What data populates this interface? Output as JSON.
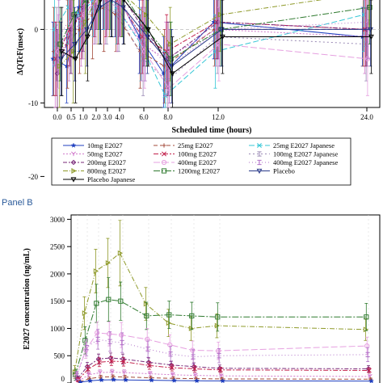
{
  "panel_b_label": "Panel B",
  "colors": {
    "10mg E2027": "#1f3fbf",
    "25mg E2027": "#a34a3a",
    "25mg E2027 Japanese": "#36c7d6",
    "50mg E2027": "#d27acc",
    "100mg E2027": "#c21f4a",
    "100mg E2027 Japanese": "#9a8ab5",
    "200mg E2027": "#7a2a7a",
    "400mg E2027": "#e6a0e0",
    "400mg E2027 Japanese": "#b070c8",
    "800mg E2027": "#8f9a2a",
    "1200mg E2027": "#2f7a2f",
    "Placebo": "#2a3a8a",
    "Placebo Japanese": "#000000"
  },
  "chart_data": [
    {
      "type": "line",
      "panel": "A",
      "ylabel": "ΔQTcF(msec)",
      "xlabel": "Scheduled time (hours)",
      "x_ticks": [
        "0.0",
        "0.5",
        "1.0",
        "2.0",
        "3.0",
        "4.0",
        "6.0",
        "8.0",
        "12.0",
        "24.0"
      ],
      "y_ticks": [
        -20,
        -10,
        0
      ],
      "ylim": [
        -21,
        7
      ],
      "legend": {
        "placement": "bottom",
        "rows": [
          [
            "10mg E2027",
            "25mg E2027",
            "25mg E2027 Japanese"
          ],
          [
            "50mg E2027",
            "100mg E2027",
            "100mg E2027 Japanese"
          ],
          [
            "200mg E2027",
            "400mg E2027",
            "400mg E2027 Japanese"
          ],
          [
            "800mg E2027",
            "1200mg E2027",
            "Placebo"
          ],
          [
            "Placebo Japanese"
          ]
        ]
      },
      "series": [
        {
          "name": "10mg E2027",
          "marker": "star",
          "dash": "",
          "values": [
            -4,
            -5,
            3,
            6,
            6,
            5,
            -1,
            -6,
            1,
            -1
          ],
          "err": [
            5,
            5,
            6,
            6,
            6,
            6,
            5,
            5,
            5,
            4
          ]
        },
        {
          "name": "25mg E2027",
          "marker": "plus",
          "dash": "5,3",
          "values": [
            -3,
            -2,
            0,
            2,
            3,
            2,
            -3,
            -5,
            0,
            0
          ],
          "err": [
            6,
            6,
            6,
            6,
            6,
            5,
            5,
            5,
            5,
            5
          ]
        },
        {
          "name": "25mg E2027 Japanese",
          "marker": "x",
          "dash": "7,3",
          "values": [
            0,
            3,
            2,
            4,
            5,
            3,
            -2,
            -9,
            -3,
            2
          ],
          "err": [
            5,
            5,
            5,
            5,
            5,
            5,
            5,
            6,
            5,
            5
          ]
        },
        {
          "name": "50mg E2027",
          "marker": "y",
          "dash": "2,2",
          "values": [
            -5,
            -1,
            1,
            4,
            4,
            3,
            -2,
            -4,
            0,
            -1
          ],
          "err": [
            6,
            6,
            6,
            6,
            6,
            6,
            5,
            5,
            5,
            5
          ]
        },
        {
          "name": "100mg E2027",
          "marker": "x",
          "dash": "6,2,2,2",
          "values": [
            -4,
            0,
            2,
            5,
            5,
            4,
            -1,
            -3,
            1,
            0
          ],
          "err": [
            5,
            5,
            6,
            6,
            6,
            6,
            5,
            5,
            5,
            5
          ]
        },
        {
          "name": "100mg E2027 Japanese",
          "marker": "bar",
          "dash": "2,3",
          "values": [
            -2,
            -1,
            1,
            3,
            3,
            2,
            -4,
            -7,
            -1,
            -2
          ],
          "err": [
            5,
            5,
            5,
            5,
            5,
            5,
            5,
            5,
            5,
            5
          ]
        },
        {
          "name": "200mg E2027",
          "marker": "diamond",
          "dash": "5,2,2,2",
          "values": [
            -6,
            0,
            3,
            6,
            6,
            5,
            0,
            -4,
            1,
            0
          ],
          "err": [
            6,
            6,
            6,
            6,
            6,
            6,
            5,
            5,
            5,
            5
          ]
        },
        {
          "name": "400mg E2027",
          "marker": "circle",
          "dash": "8,3",
          "values": [
            -3,
            1,
            2,
            4,
            5,
            4,
            -3,
            -8,
            -2,
            -4
          ],
          "err": [
            5,
            5,
            6,
            6,
            6,
            5,
            5,
            5,
            5,
            5
          ]
        },
        {
          "name": "400mg E2027 Japanese",
          "marker": "bar",
          "dash": "1,3",
          "values": [
            -1,
            2,
            3,
            5,
            5,
            4,
            -2,
            -5,
            0,
            1
          ],
          "err": [
            5,
            5,
            5,
            5,
            5,
            5,
            5,
            5,
            5,
            5
          ]
        },
        {
          "name": "800mg E2027",
          "marker": "tri-right",
          "dash": "6,2,1,2",
          "values": [
            -5,
            -3,
            1,
            5,
            6,
            5,
            2,
            -2,
            2,
            5
          ],
          "err": [
            6,
            7,
            7,
            7,
            7,
            6,
            6,
            5,
            5,
            5
          ]
        },
        {
          "name": "1200mg E2027",
          "marker": "square",
          "dash": "8,2,2,2",
          "values": [
            -2,
            2,
            4,
            6,
            6,
            5,
            0,
            -4,
            0,
            3
          ],
          "err": [
            5,
            6,
            6,
            6,
            6,
            6,
            5,
            5,
            5,
            5
          ]
        },
        {
          "name": "Placebo",
          "marker": "tri-down",
          "dash": "",
          "values": [
            -4,
            -2,
            0,
            3,
            4,
            3,
            -1,
            -5,
            0,
            0
          ],
          "err": [
            5,
            5,
            5,
            5,
            5,
            5,
            5,
            5,
            5,
            5
          ]
        },
        {
          "name": "Placebo Japanese",
          "marker": "tri-down",
          "dash": "",
          "values": [
            -3,
            -4,
            -1,
            4,
            5,
            4,
            0,
            -6,
            -1,
            -1
          ],
          "err": [
            6,
            6,
            6,
            6,
            6,
            6,
            5,
            5,
            5,
            5
          ]
        }
      ]
    },
    {
      "type": "line",
      "panel": "B",
      "ylabel": "E2027 concentration (ng/mL)",
      "y_ticks": [
        0,
        500,
        1000,
        1500,
        2000,
        2500,
        3000
      ],
      "ylim": [
        0,
        3080
      ],
      "x_positions": [
        0,
        0.5,
        1,
        2,
        3,
        4,
        6,
        8,
        12,
        24
      ],
      "series": [
        {
          "name": "800mg E2027",
          "marker": "tri-right",
          "dash": "6,2,1,2",
          "values": [
            200,
            1280,
            2050,
            2200,
            2380,
            1450,
            1100,
            1000,
            1050,
            980
          ],
          "err": [
            120,
            300,
            400,
            450,
            600,
            300,
            250,
            220,
            220,
            200
          ]
        },
        {
          "name": "1200mg E2027",
          "marker": "square",
          "dash": "8,2,2,2",
          "values": [
            150,
            780,
            1460,
            1530,
            1500,
            1230,
            1250,
            1230,
            1210,
            1210
          ],
          "err": [
            100,
            250,
            350,
            400,
            350,
            250,
            250,
            250,
            260,
            250
          ]
        },
        {
          "name": "400mg E2027",
          "marker": "circle",
          "dash": "8,3",
          "values": [
            120,
            600,
            920,
            900,
            880,
            800,
            700,
            600,
            590,
            680
          ],
          "err": [
            80,
            150,
            200,
            220,
            230,
            200,
            180,
            170,
            160,
            160
          ]
        },
        {
          "name": "400mg E2027 Japanese",
          "marker": "bar",
          "dash": "1,3",
          "values": [
            130,
            650,
            800,
            760,
            740,
            620,
            530,
            480,
            500,
            520
          ],
          "err": [
            80,
            150,
            180,
            180,
            180,
            150,
            140,
            130,
            130,
            130
          ]
        },
        {
          "name": "200mg E2027",
          "marker": "diamond",
          "dash": "5,2,2,2",
          "values": [
            80,
            300,
            440,
            460,
            440,
            380,
            330,
            300,
            270,
            260
          ],
          "err": [
            50,
            80,
            90,
            90,
            90,
            80,
            70,
            70,
            60,
            60
          ]
        },
        {
          "name": "100mg E2027",
          "marker": "x",
          "dash": "6,2,2,2",
          "values": [
            60,
            250,
            380,
            400,
            390,
            320,
            280,
            260,
            240,
            230
          ],
          "err": [
            40,
            70,
            80,
            80,
            80,
            70,
            60,
            60,
            50,
            50
          ]
        },
        {
          "name": "50mg E2027",
          "marker": "y",
          "dash": "2,2",
          "values": [
            40,
            150,
            190,
            200,
            190,
            170,
            150,
            140,
            130,
            120
          ],
          "err": [
            30,
            40,
            50,
            50,
            50,
            40,
            40,
            40,
            30,
            30
          ]
        },
        {
          "name": "25mg E2027",
          "marker": "plus",
          "dash": "5,3",
          "values": [
            25,
            80,
            110,
            115,
            110,
            95,
            85,
            80,
            75,
            70
          ],
          "err": [
            20,
            25,
            30,
            30,
            30,
            25,
            25,
            25,
            20,
            20
          ]
        },
        {
          "name": "10mg E2027",
          "marker": "star",
          "dash": "",
          "values": [
            15,
            40,
            55,
            60,
            55,
            50,
            45,
            40,
            38,
            35
          ],
          "err": [
            10,
            15,
            15,
            15,
            15,
            15,
            12,
            12,
            10,
            10
          ]
        }
      ]
    }
  ]
}
